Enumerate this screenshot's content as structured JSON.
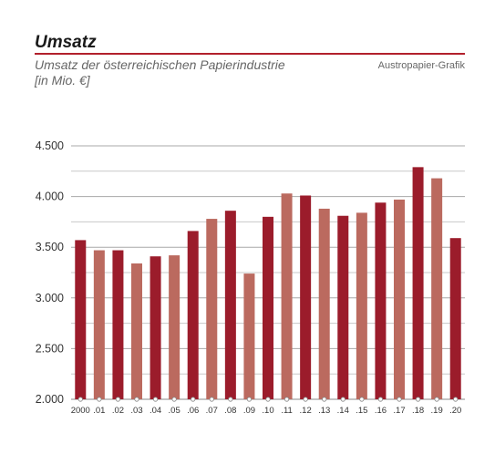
{
  "header": {
    "title": "Umsatz",
    "subtitle_line1": "Umsatz der österreichischen Papierindustrie",
    "subtitle_line2": "[in Mio. €]",
    "source": "Austropapier-Grafik"
  },
  "colors": {
    "dark": "#9b1c2b",
    "light": "#bb6a5f",
    "accent": "#b2202c",
    "grid": "#c8c8c8"
  },
  "chart_data": {
    "type": "bar",
    "categories": [
      "2000",
      ".01",
      ".02",
      ".03",
      ".04",
      ".05",
      ".06",
      ".07",
      ".08",
      ".09",
      ".10",
      ".11",
      ".12",
      ".13",
      ".14",
      ".15",
      ".16",
      ".17",
      ".18",
      ".19",
      ".20"
    ],
    "values": [
      3570,
      3470,
      3470,
      3340,
      3410,
      3420,
      3660,
      3780,
      3860,
      3240,
      3800,
      4030,
      4010,
      3880,
      3810,
      3840,
      3940,
      3970,
      4290,
      4180,
      3590
    ],
    "bar_colors": [
      "dark",
      "light",
      "dark",
      "light",
      "dark",
      "light",
      "dark",
      "light",
      "dark",
      "light",
      "dark",
      "light",
      "dark",
      "light",
      "dark",
      "light",
      "dark",
      "light",
      "dark",
      "light",
      "dark"
    ],
    "ylim": [
      2000,
      4500
    ],
    "yticks": [
      2000,
      2500,
      3000,
      3500,
      4000,
      4500
    ],
    "ytick_labels": [
      "2.000",
      "2.500",
      "3.000",
      "3.500",
      "4.000",
      "4.500"
    ],
    "grid": true,
    "minor_gridlines": true,
    "xlabel": "",
    "ylabel": ""
  }
}
